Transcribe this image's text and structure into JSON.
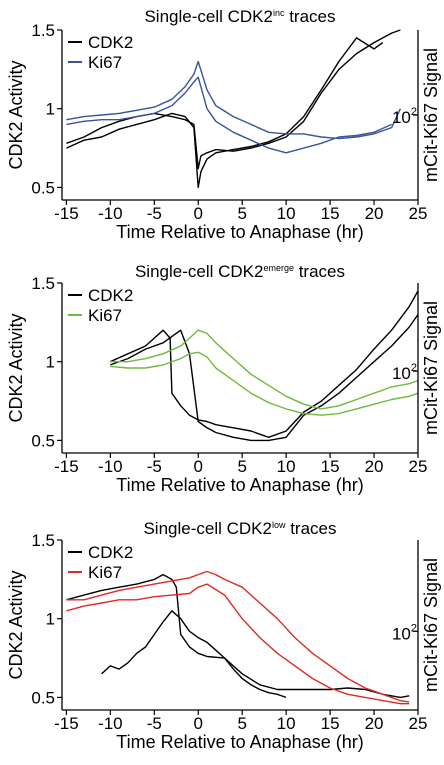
{
  "chart_data": [
    {
      "type": "line",
      "title": "Single-cell CDK2",
      "title_sup": "inc",
      "title_tail": " traces",
      "xlabel": "Time Relative to Anaphase (hr)",
      "ylabel": "CDK2 Activity",
      "y2label": "mCit-Ki67 Signal",
      "xlim": [
        -15.5,
        25
      ],
      "ylim": [
        0.42,
        1.5
      ],
      "xticks": [
        -15,
        -10,
        -5,
        0,
        5,
        10,
        15,
        20,
        25
      ],
      "xtick_labels": [
        "-15",
        "-10",
        "-5",
        "0",
        "5",
        "10",
        "15",
        "20",
        "25"
      ],
      "yticks": [
        0.5,
        1,
        1.5
      ],
      "ytick_labels": [
        "0.5",
        "1",
        "1.5"
      ],
      "y2tick_label_base": "10",
      "y2tick_label_exp": "2",
      "y2tick_position": 0.96,
      "legend_position": "top-left",
      "series": [
        {
          "name": "CDK2",
          "color": "#000000",
          "x": [
            -15,
            -13,
            -11,
            -9,
            -7,
            -5,
            -3,
            -1.5,
            -0.5,
            0,
            0.3,
            1,
            2,
            4,
            6,
            8,
            10,
            12,
            14,
            16,
            18,
            20,
            22,
            23
          ],
          "y": [
            0.78,
            0.82,
            0.88,
            0.92,
            0.95,
            0.97,
            0.95,
            0.93,
            0.9,
            0.62,
            0.7,
            0.72,
            0.74,
            0.73,
            0.75,
            0.78,
            0.82,
            0.92,
            1.1,
            1.25,
            1.35,
            1.42,
            1.48,
            1.5
          ]
        },
        {
          "name": "",
          "color": "#000000",
          "x": [
            -15,
            -13,
            -11,
            -9,
            -7,
            -5,
            -3,
            -1.5,
            -0.5,
            0,
            0.3,
            1,
            2,
            4,
            6,
            8,
            10,
            12,
            14,
            16,
            18,
            20,
            21
          ],
          "y": [
            0.75,
            0.8,
            0.82,
            0.87,
            0.9,
            0.93,
            0.97,
            0.95,
            0.88,
            0.5,
            0.6,
            0.68,
            0.72,
            0.74,
            0.76,
            0.79,
            0.84,
            0.95,
            1.12,
            1.3,
            1.45,
            1.38,
            1.42
          ]
        },
        {
          "name": "Ki67",
          "color": "#3a539b",
          "x": [
            -15,
            -13,
            -11,
            -9,
            -7,
            -5,
            -3,
            -1.5,
            -0.5,
            0,
            1,
            2,
            4,
            6,
            8,
            10,
            12,
            14,
            16,
            18,
            20,
            22,
            23
          ],
          "y": [
            0.93,
            0.95,
            0.96,
            0.97,
            0.99,
            1.01,
            1.06,
            1.14,
            1.22,
            1.3,
            1.12,
            1.02,
            0.95,
            0.9,
            0.85,
            0.84,
            0.84,
            0.82,
            0.81,
            0.82,
            0.84,
            0.88,
            1.0
          ]
        },
        {
          "name": "",
          "color": "#3a539b",
          "x": [
            -15,
            -13,
            -11,
            -9,
            -7,
            -5,
            -3,
            -1.5,
            -0.5,
            0,
            1,
            2,
            4,
            6,
            8,
            10,
            12,
            14,
            16,
            18,
            20,
            22
          ],
          "y": [
            0.9,
            0.92,
            0.93,
            0.93,
            0.95,
            0.97,
            1.02,
            1.1,
            1.17,
            1.2,
            1.0,
            0.92,
            0.85,
            0.8,
            0.75,
            0.72,
            0.75,
            0.78,
            0.82,
            0.83,
            0.85,
            0.9
          ]
        }
      ]
    },
    {
      "type": "line",
      "title": "Single-cell CDK2",
      "title_sup": "emerge",
      "title_tail": " traces",
      "xlabel": "Time Relative to Anaphase (hr)",
      "ylabel": "CDK2 Activity",
      "y2label": "mCit-Ki67 Signal",
      "xlim": [
        -15.5,
        25
      ],
      "ylim": [
        0.42,
        1.5
      ],
      "xticks": [
        -15,
        -10,
        -5,
        0,
        5,
        10,
        15,
        20,
        25
      ],
      "xtick_labels": [
        "-15",
        "-10",
        "-5",
        "0",
        "5",
        "10",
        "15",
        "20",
        "25"
      ],
      "yticks": [
        0.5,
        1,
        1.5
      ],
      "ytick_labels": [
        "0.5",
        "1",
        "1.5"
      ],
      "y2tick_label_base": "10",
      "y2tick_label_exp": "2",
      "y2tick_position": 0.94,
      "legend_position": "top-left",
      "series": [
        {
          "name": "CDK2",
          "color": "#000000",
          "x": [
            -10,
            -8,
            -6,
            -5,
            -4,
            -3.2,
            -3,
            -2,
            -1,
            0,
            1,
            2,
            4,
            6,
            8,
            10,
            12,
            14,
            16,
            18,
            20,
            22,
            24,
            25
          ],
          "y": [
            1.0,
            1.05,
            1.1,
            1.15,
            1.2,
            1.15,
            0.8,
            0.72,
            0.66,
            0.63,
            0.62,
            0.6,
            0.58,
            0.56,
            0.52,
            0.56,
            0.68,
            0.75,
            0.85,
            0.95,
            1.08,
            1.2,
            1.35,
            1.45
          ]
        },
        {
          "name": "",
          "color": "#000000",
          "x": [
            -10,
            -8,
            -6,
            -4,
            -2,
            -1,
            0,
            1,
            2,
            4,
            6,
            8,
            10,
            12,
            14,
            16,
            18,
            20,
            22,
            24,
            25
          ],
          "y": [
            0.98,
            1.02,
            1.08,
            1.12,
            1.2,
            1.05,
            0.62,
            0.58,
            0.55,
            0.52,
            0.5,
            0.5,
            0.52,
            0.66,
            0.72,
            0.8,
            0.9,
            1.0,
            1.1,
            1.22,
            1.3
          ]
        },
        {
          "name": "Ki67",
          "color": "#6fb93b",
          "x": [
            -10,
            -8,
            -6,
            -4,
            -2,
            -1,
            0,
            1,
            2,
            4,
            6,
            8,
            10,
            12,
            14,
            16,
            18,
            20,
            22,
            24,
            25
          ],
          "y": [
            1.0,
            1.0,
            1.02,
            1.05,
            1.1,
            1.15,
            1.2,
            1.18,
            1.12,
            1.02,
            0.92,
            0.85,
            0.78,
            0.73,
            0.7,
            0.72,
            0.76,
            0.8,
            0.84,
            0.86,
            0.88
          ]
        },
        {
          "name": "",
          "color": "#6fb93b",
          "x": [
            -10,
            -8,
            -6,
            -4,
            -2,
            -1,
            0,
            1,
            2,
            4,
            6,
            8,
            10,
            12,
            14,
            16,
            18,
            20,
            22,
            24,
            25
          ],
          "y": [
            0.97,
            0.96,
            0.96,
            0.98,
            1.02,
            1.05,
            1.06,
            1.03,
            0.96,
            0.88,
            0.8,
            0.74,
            0.7,
            0.67,
            0.66,
            0.67,
            0.7,
            0.73,
            0.76,
            0.78,
            0.8
          ]
        }
      ]
    },
    {
      "type": "line",
      "title": "Single-cell CDK2",
      "title_sup": "low",
      "title_tail": " traces",
      "xlabel": "Time Relative to Anaphase (hr)",
      "ylabel": "CDK2 Activity",
      "y2label": "mCit-Ki67 Signal",
      "xlim": [
        -15.5,
        25
      ],
      "ylim": [
        0.42,
        1.5
      ],
      "xticks": [
        -15,
        -10,
        -5,
        0,
        5,
        10,
        15,
        20,
        25
      ],
      "xtick_labels": [
        "-15",
        "-10",
        "-5",
        "0",
        "5",
        "10",
        "15",
        "20",
        "25"
      ],
      "yticks": [
        0.5,
        1,
        1.5
      ],
      "ytick_labels": [
        "0.5",
        "1",
        "1.5"
      ],
      "y2tick_label_base": "10",
      "y2tick_label_exp": "2",
      "y2tick_position": 0.92,
      "legend_position": "top-left",
      "series": [
        {
          "name": "CDK2",
          "color": "#000000",
          "x": [
            -15,
            -13,
            -11,
            -9,
            -7,
            -5,
            -4,
            -3,
            -2.5,
            -2,
            -1,
            0,
            1,
            3,
            5,
            7,
            9,
            11,
            13,
            15,
            17,
            19,
            21,
            23,
            24
          ],
          "y": [
            1.12,
            1.15,
            1.18,
            1.2,
            1.22,
            1.25,
            1.28,
            1.25,
            1.2,
            0.9,
            0.82,
            0.78,
            0.76,
            0.75,
            0.65,
            0.58,
            0.55,
            0.55,
            0.55,
            0.55,
            0.56,
            0.55,
            0.52,
            0.5,
            0.51
          ]
        },
        {
          "name": "",
          "color": "#000000",
          "x": [
            -11,
            -10,
            -9,
            -8,
            -7,
            -6,
            -5,
            -4,
            -3,
            -2,
            -1,
            0,
            1,
            2,
            3,
            4,
            5,
            6,
            7,
            8,
            9,
            10
          ],
          "y": [
            0.65,
            0.7,
            0.68,
            0.72,
            0.78,
            0.82,
            0.9,
            0.98,
            1.05,
            1.0,
            0.92,
            0.88,
            0.85,
            0.8,
            0.75,
            0.68,
            0.62,
            0.58,
            0.55,
            0.53,
            0.52,
            0.5
          ]
        },
        {
          "name": "Ki67",
          "color": "#e02a26",
          "x": [
            -15,
            -13,
            -11,
            -9,
            -7,
            -5,
            -3,
            -1,
            0,
            1,
            2,
            3,
            5,
            7,
            9,
            11,
            13,
            15,
            17,
            19,
            21,
            23,
            24
          ],
          "y": [
            1.12,
            1.12,
            1.15,
            1.18,
            1.2,
            1.22,
            1.24,
            1.26,
            1.28,
            1.3,
            1.28,
            1.25,
            1.2,
            1.1,
            1.0,
            0.88,
            0.78,
            0.7,
            0.62,
            0.56,
            0.52,
            0.48,
            0.47
          ]
        },
        {
          "name": "",
          "color": "#e02a26",
          "x": [
            -15,
            -13,
            -11,
            -9,
            -7,
            -5,
            -3,
            -1,
            0,
            1,
            3,
            5,
            7,
            9,
            11,
            13,
            15,
            17,
            19,
            21,
            23,
            24
          ],
          "y": [
            1.05,
            1.08,
            1.1,
            1.12,
            1.12,
            1.14,
            1.15,
            1.16,
            1.2,
            1.22,
            1.15,
            1.0,
            0.88,
            0.78,
            0.7,
            0.62,
            0.56,
            0.52,
            0.5,
            0.48,
            0.46,
            0.46
          ]
        }
      ]
    }
  ]
}
